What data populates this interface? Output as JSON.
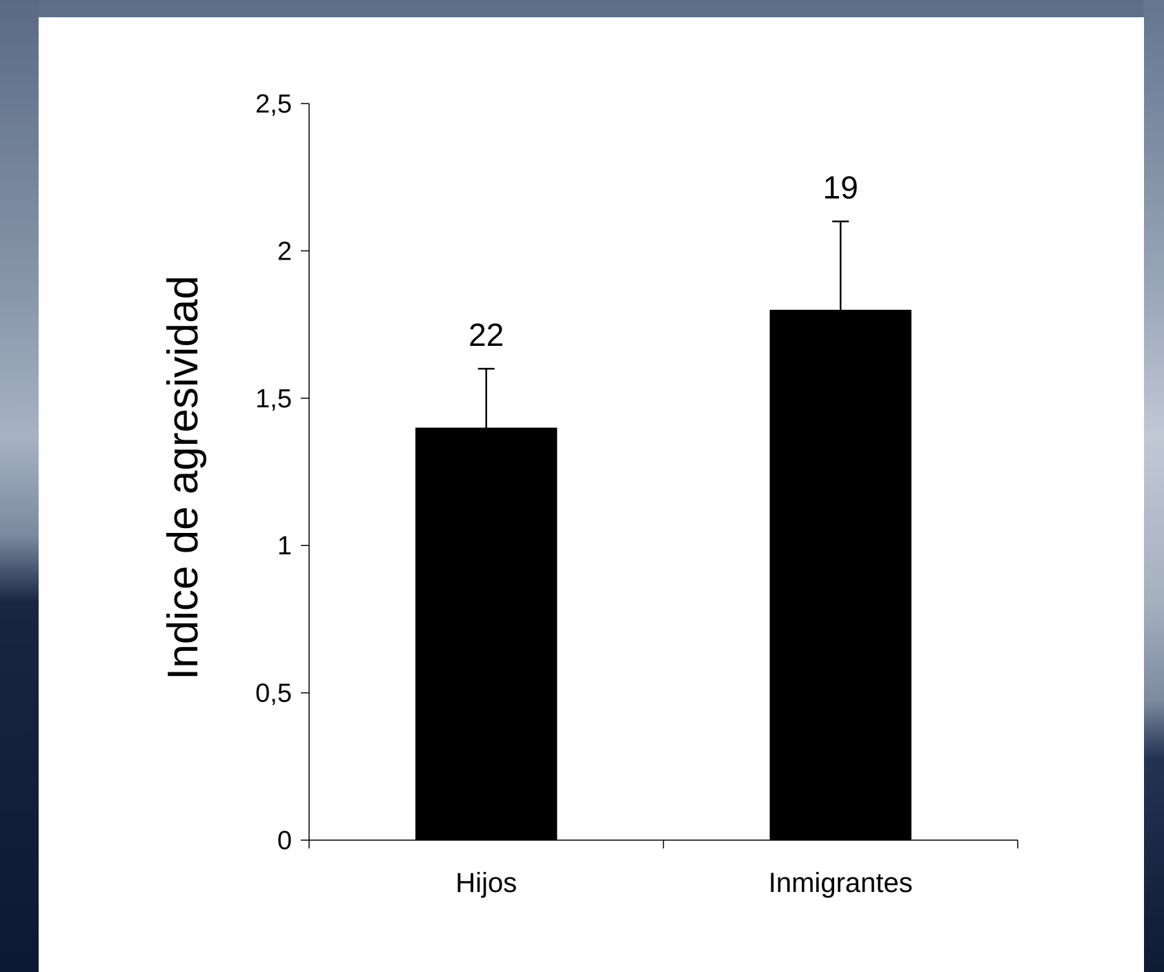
{
  "chart_data": {
    "type": "bar",
    "categories": [
      "Hijos",
      "Inmigrantes"
    ],
    "values": [
      1.4,
      1.8
    ],
    "error_upper": [
      1.6,
      2.1
    ],
    "data_labels": [
      "22",
      "19"
    ],
    "ylabel": "Indice de agresividad",
    "xlabel": "",
    "title": "",
    "ylim": [
      0,
      2.5
    ],
    "yticks": [
      0,
      0.5,
      1,
      1.5,
      2,
      2.5
    ],
    "ytick_labels": [
      "0",
      "0,5",
      "1",
      "1,5",
      "2",
      "2,5"
    ],
    "grid": false,
    "legend": "none",
    "bar_color": "#000000"
  }
}
